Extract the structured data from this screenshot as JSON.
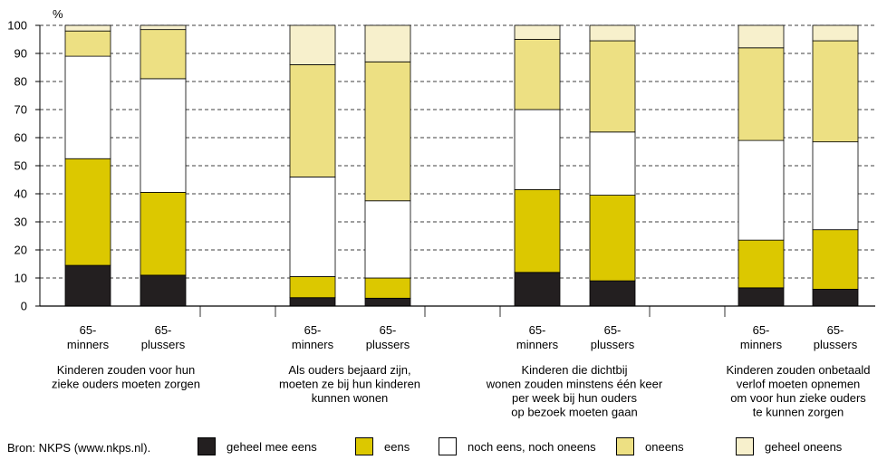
{
  "chart_data": {
    "type": "bar",
    "stacked": true,
    "ylabel": "%",
    "ylim": [
      0,
      100
    ],
    "yticks": [
      0,
      10,
      20,
      30,
      40,
      50,
      60,
      70,
      80,
      90,
      100
    ],
    "grid": true,
    "groups": [
      {
        "caption": [
          "Kinderen zouden voor hun",
          "zieke ouders moeten zorgen"
        ],
        "bars": [
          {
            "label": [
              "65-",
              "minners"
            ],
            "values": [
              14.5,
              38,
              36.5,
              9,
              2
            ]
          },
          {
            "label": [
              "65-",
              "plussers"
            ],
            "values": [
              11,
              29.5,
              40.5,
              17.5,
              1.5
            ]
          }
        ]
      },
      {
        "caption": [
          "Als ouders bejaard zijn,",
          "moeten ze bij hun kinderen",
          "kunnen wonen"
        ],
        "bars": [
          {
            "label": [
              "65-",
              "minners"
            ],
            "values": [
              3,
              7.5,
              35.5,
              40,
              14
            ]
          },
          {
            "label": [
              "65-",
              "plussers"
            ],
            "values": [
              2.8,
              7.2,
              27.5,
              49.5,
              13
            ]
          }
        ]
      },
      {
        "caption": [
          "Kinderen die dichtbij",
          "wonen zouden minstens één keer",
          "per week bij hun ouders",
          "op bezoek moeten gaan"
        ],
        "bars": [
          {
            "label": [
              "65-",
              "minners"
            ],
            "values": [
              12,
              29.5,
              28.5,
              25,
              5
            ]
          },
          {
            "label": [
              "65-",
              "plussers"
            ],
            "values": [
              9,
              30.5,
              22.5,
              32.5,
              5.5
            ]
          }
        ]
      },
      {
        "caption": [
          "Kinderen zouden onbetaald",
          "verlof moeten opnemen",
          "om voor hun zieke ouders",
          "te kunnen zorgen"
        ],
        "bars": [
          {
            "label": [
              "65-",
              "minners"
            ],
            "values": [
              6.5,
              17,
              35.5,
              33,
              8
            ]
          },
          {
            "label": [
              "65-",
              "plussers"
            ],
            "values": [
              6,
              21.2,
              31.3,
              36,
              5.5
            ]
          }
        ]
      }
    ],
    "series": [
      {
        "name": "geheel mee eens",
        "color": "#231f20"
      },
      {
        "name": "eens",
        "color": "#dcc800"
      },
      {
        "name": "noch eens, noch oneens",
        "color": "#ffffff"
      },
      {
        "name": "oneens",
        "color": "#ede083"
      },
      {
        "name": "geheel oneens",
        "color": "#f7f0cc"
      }
    ],
    "source": "Bron: NKPS (www.nkps.nl)."
  }
}
